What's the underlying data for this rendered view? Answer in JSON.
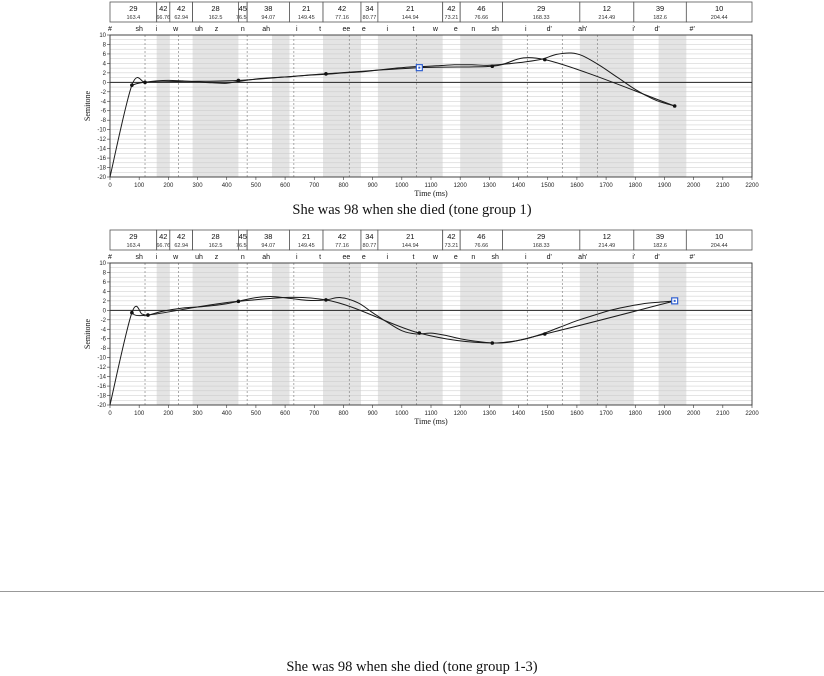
{
  "segments": [
    {
      "dur": "29",
      "f0": "163.4"
    },
    {
      "dur": "42",
      "f0": "66.76"
    },
    {
      "dur": "42",
      "f0": "62.94"
    },
    {
      "dur": "28",
      "f0": "162.5"
    },
    {
      "dur": "45",
      "f0": "76.58"
    },
    {
      "dur": "38",
      "f0": "94.07"
    },
    {
      "dur": "21",
      "f0": "149.45"
    },
    {
      "dur": "42",
      "f0": "77.16"
    },
    {
      "dur": "34",
      "f0": "80.77"
    },
    {
      "dur": "21",
      "f0": "144.94"
    },
    {
      "dur": "42",
      "f0": "73.21"
    },
    {
      "dur": "46",
      "f0": "76.66"
    },
    {
      "dur": "29",
      "f0": "168.33"
    },
    {
      "dur": "12",
      "f0": "214.49"
    },
    {
      "dur": "39",
      "f0": "182.6"
    },
    {
      "dur": "10",
      "f0": "204.44"
    }
  ],
  "segment_bounds_ms": [
    0,
    160,
    205,
    283,
    440,
    470,
    615,
    730,
    860,
    918,
    1140,
    1200,
    1345,
    1610,
    1795,
    1975
  ],
  "phone_labels": [
    {
      "t": "#",
      "x": 0
    },
    {
      "t": "sh",
      "x": 100
    },
    {
      "t": "i",
      "x": 160
    },
    {
      "t": "w",
      "x": 225
    },
    {
      "t": "uh",
      "x": 305
    },
    {
      "t": "z",
      "x": 365
    },
    {
      "t": "n",
      "x": 455
    },
    {
      "t": "ah",
      "x": 535
    },
    {
      "t": "i",
      "x": 640
    },
    {
      "t": "t",
      "x": 720
    },
    {
      "t": "ee",
      "x": 810
    },
    {
      "t": "e",
      "x": 870
    },
    {
      "t": "i",
      "x": 950
    },
    {
      "t": "t",
      "x": 1040
    },
    {
      "t": "w",
      "x": 1115
    },
    {
      "t": "e",
      "x": 1185
    },
    {
      "t": "n",
      "x": 1245
    },
    {
      "t": "sh",
      "x": 1320
    },
    {
      "t": "i",
      "x": 1425
    },
    {
      "t": "d'",
      "x": 1505
    },
    {
      "t": "ah'",
      "x": 1620
    },
    {
      "t": "i'",
      "x": 1795
    },
    {
      "t": "d'",
      "x": 1875
    },
    {
      "t": "#'",
      "x": 1995
    }
  ],
  "shaded_bands": [
    [
      160,
      205
    ],
    [
      283,
      440
    ],
    [
      555,
      615
    ],
    [
      730,
      860
    ],
    [
      918,
      1140
    ],
    [
      1200,
      1345
    ],
    [
      1610,
      1795
    ],
    [
      1880,
      1975
    ]
  ],
  "dashed_lines": [
    120,
    235,
    470,
    630,
    820,
    1050,
    1430,
    1550,
    1670
  ],
  "colors": {
    "shade": "#e4e4e4",
    "grid": "#c8c8c8",
    "curve": "#1a1a1a",
    "marker": "#2f5fd0"
  },
  "charts": [
    {
      "caption": "She was 98 when she died (tone group 1)"
    },
    {
      "caption": "She was 98 when she died (tone group 1-3)"
    }
  ],
  "chart_data": [
    {
      "type": "line",
      "title": "She was 98 when she died (tone group 1)",
      "xlabel": "Time (ms)",
      "ylabel": "Semitone",
      "xlim": [
        0,
        2200
      ],
      "ylim": [
        -20,
        10
      ],
      "x_ticks": [
        0,
        100,
        200,
        300,
        400,
        500,
        600,
        700,
        800,
        900,
        1000,
        1100,
        1200,
        1300,
        1400,
        1500,
        1600,
        1700,
        1800,
        1900,
        2000,
        2100,
        2200
      ],
      "y_ticks": [
        10,
        8,
        6,
        4,
        2,
        0,
        -2,
        -4,
        -6,
        -8,
        -10,
        -12,
        -14,
        -16,
        -18,
        -20
      ],
      "grid": true,
      "series": [
        {
          "x": [
            0,
            75,
            120,
            160,
            200,
            250,
            300,
            350,
            400,
            440,
            500,
            560,
            620,
            680,
            740,
            800,
            860,
            920,
            980,
            1040,
            1060,
            1120,
            1180,
            1240,
            1300,
            1360,
            1420,
            1480,
            1530,
            1580,
            1620,
            1680,
            1740,
            1800,
            1860,
            1900,
            1935
          ],
          "y": [
            -20,
            -0.6,
            0,
            0.3,
            0.4,
            0.3,
            0.1,
            -0.1,
            -0.2,
            0.2,
            0.7,
            1.0,
            1.2,
            1.5,
            1.7,
            2.0,
            2.2,
            2.6,
            3.0,
            3.3,
            3.3,
            3.5,
            3.7,
            3.7,
            3.6,
            3.9,
            4.3,
            4.9,
            5.9,
            6.2,
            5.6,
            3.5,
            1.0,
            -1.5,
            -3.5,
            -4.4,
            -5.0
          ]
        },
        {
          "x": [
            75,
            120,
            250,
            440,
            740,
            1060,
            1310,
            1490,
            1935
          ],
          "y": [
            -0.6,
            0,
            0.2,
            0.4,
            1.8,
            3.1,
            3.4,
            4.8,
            -5.0
          ]
        }
      ],
      "points": [
        {
          "x": 75,
          "y": -0.6
        },
        {
          "x": 120,
          "y": 0
        },
        {
          "x": 440,
          "y": 0.4
        },
        {
          "x": 740,
          "y": 1.8
        },
        {
          "x": 1310,
          "y": 3.4
        },
        {
          "x": 1490,
          "y": 4.8
        },
        {
          "x": 1935,
          "y": -5.0
        }
      ],
      "marker": {
        "x": 1060,
        "y": 3.1
      }
    },
    {
      "type": "line",
      "title": "She was 98 when she died (tone group 1-3)",
      "xlabel": "Time (ms)",
      "ylabel": "Semitone",
      "xlim": [
        0,
        2200
      ],
      "ylim": [
        -20,
        10
      ],
      "x_ticks": [
        0,
        100,
        200,
        300,
        400,
        500,
        600,
        700,
        800,
        900,
        1000,
        1100,
        1200,
        1300,
        1400,
        1500,
        1600,
        1700,
        1800,
        1900,
        2000,
        2100,
        2200
      ],
      "y_ticks": [
        10,
        8,
        6,
        4,
        2,
        0,
        -2,
        -4,
        -6,
        -8,
        -10,
        -12,
        -14,
        -16,
        -18,
        -20
      ],
      "grid": true,
      "series": [
        {
          "x": [
            0,
            75,
            110,
            130,
            180,
            250,
            320,
            400,
            440,
            500,
            560,
            620,
            680,
            740,
            790,
            850,
            900,
            950,
            1000,
            1050,
            1100,
            1150,
            1200,
            1250,
            1310,
            1360,
            1420,
            1480,
            1540,
            1600,
            1660,
            1720,
            1780,
            1840,
            1900,
            1935
          ],
          "y": [
            -20,
            -0.5,
            -0.8,
            -1.0,
            -0.2,
            0.5,
            0.8,
            1.4,
            1.9,
            2.7,
            2.9,
            2.5,
            2.1,
            2.2,
            2.7,
            1.6,
            -0.5,
            -2.5,
            -4.3,
            -5.0,
            -4.8,
            -5.3,
            -6.0,
            -6.5,
            -6.9,
            -6.7,
            -6.1,
            -5.0,
            -3.6,
            -2.2,
            -1.0,
            0.1,
            0.9,
            1.5,
            1.8,
            2.0
          ]
        },
        {
          "x": [
            75,
            130,
            440,
            740,
            1060,
            1310,
            1490,
            1935
          ],
          "y": [
            -0.5,
            -1.0,
            1.9,
            2.2,
            -4.8,
            -6.9,
            -5.0,
            2.0
          ]
        }
      ],
      "points": [
        {
          "x": 75,
          "y": -0.5
        },
        {
          "x": 130,
          "y": -1.0
        },
        {
          "x": 440,
          "y": 1.9
        },
        {
          "x": 740,
          "y": 2.2
        },
        {
          "x": 1060,
          "y": -4.8
        },
        {
          "x": 1310,
          "y": -6.9
        },
        {
          "x": 1490,
          "y": -5.0
        }
      ],
      "marker": {
        "x": 1935,
        "y": 2.0
      }
    }
  ]
}
